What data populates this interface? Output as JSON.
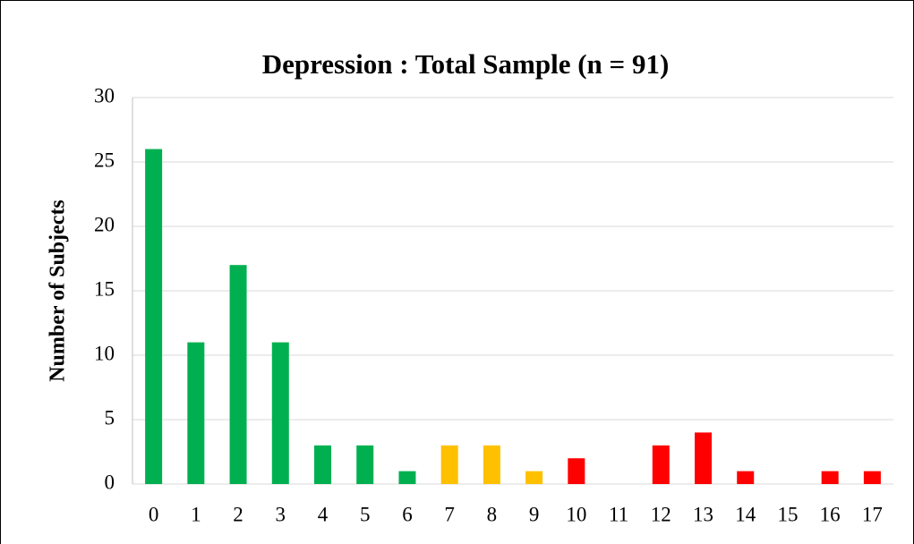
{
  "chart_data": {
    "type": "bar",
    "title": "Depression : Total Sample (n = 91)",
    "ylabel": "Number of Subjects",
    "categories": [
      "0",
      "1",
      "2",
      "3",
      "4",
      "5",
      "6",
      "7",
      "8",
      "9",
      "10",
      "11",
      "12",
      "13",
      "14",
      "15",
      "16",
      "17"
    ],
    "values": [
      26,
      11,
      17,
      11,
      3,
      3,
      1,
      3,
      3,
      1,
      2,
      0,
      3,
      4,
      1,
      0,
      1,
      1
    ],
    "colors": [
      "#00b050",
      "#00b050",
      "#00b050",
      "#00b050",
      "#00b050",
      "#00b050",
      "#00b050",
      "#ffc000",
      "#ffc000",
      "#ffc000",
      "#ff0000",
      "#ff0000",
      "#ff0000",
      "#ff0000",
      "#ff0000",
      "#ff0000",
      "#ff0000",
      "#ff0000"
    ],
    "ylim": [
      0,
      30
    ],
    "yticks": [
      0,
      5,
      10,
      15,
      20,
      25,
      30
    ],
    "grid": true
  }
}
